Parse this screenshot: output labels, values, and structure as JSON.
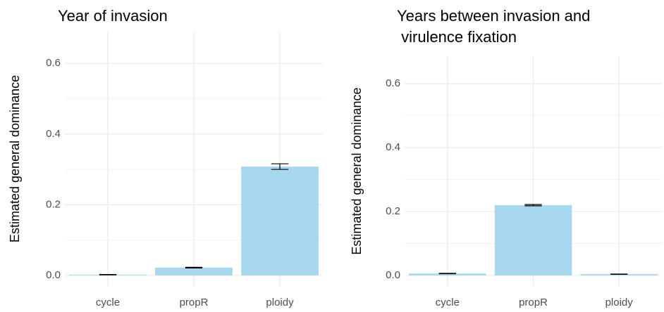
{
  "chart_data": [
    {
      "type": "bar",
      "title": [
        "Year of invasion"
      ],
      "y_label": "Estimated general dominance",
      "categories": [
        "cycle",
        "propR",
        "ploidy"
      ],
      "values": [
        0.002,
        0.022,
        0.308
      ],
      "errors": [
        0.0005,
        0.001,
        0.008
      ],
      "color": "#a8d8ef",
      "ylim": [
        -0.03,
        0.69
      ],
      "yticks": [
        {
          "value": 0,
          "label": "0.0"
        },
        0.2,
        0.4,
        0.6
      ],
      "minor_yticks": [
        0.1,
        0.3,
        0.5
      ],
      "grid": true
    },
    {
      "type": "bar",
      "title": [
        "Years between invasion and",
        " virulence fixation"
      ],
      "y_label": "Estimated general dominance",
      "categories": [
        "cycle",
        "propR",
        "ploidy"
      ],
      "values": [
        0.006,
        0.22,
        0.004
      ],
      "errors": [
        0.0005,
        0.002,
        0.0005
      ],
      "color": "#a8d8ef",
      "ylim": [
        -0.033,
        0.686
      ],
      "yticks": [
        {
          "value": 0,
          "label": "0.0"
        },
        0.2,
        0.4,
        0.6
      ],
      "minor_yticks": [
        0.1,
        0.3,
        0.5
      ],
      "grid": true
    }
  ]
}
